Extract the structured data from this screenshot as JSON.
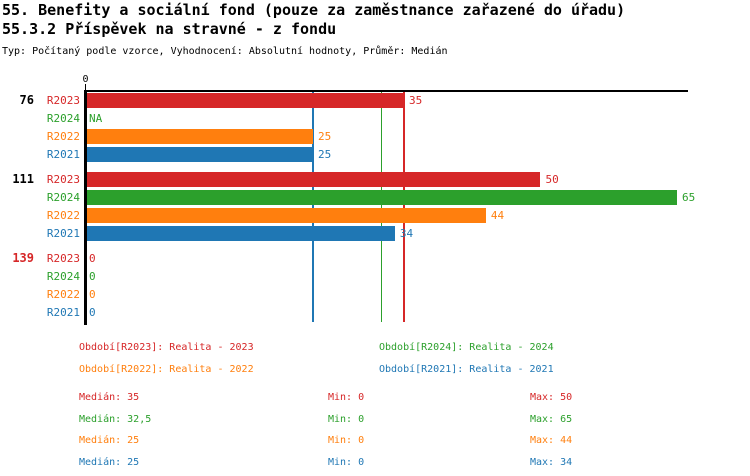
{
  "header": {
    "title": "55. Benefity a sociální fond (pouze za zaměstnance zařazené do úřadu)",
    "subtitle": "55.3.2 Příspěvek na stravné - z fondu",
    "meta": "Typ: Počítaný podle vzorce, Vyhodnocení: Absolutní hodnoty, Průměr: Medián"
  },
  "colors": {
    "R2023": "#d62728",
    "R2024": "#2ca02c",
    "R2022": "#ff7f0e",
    "R2021": "#1f77b4",
    "axis": "#000000",
    "group_label_default": "#000000",
    "group_label_highlight": "#d62728"
  },
  "chart_data": {
    "type": "bar",
    "orientation": "horizontal",
    "title": "55.3.2 Příspěvek na stravné - z fondu",
    "xlabel": "",
    "ylabel": "",
    "xlim": [
      0,
      66
    ],
    "grid": false,
    "x_ticks": [
      {
        "value": 0,
        "label": "0"
      }
    ],
    "series": [
      "R2023",
      "R2024",
      "R2022",
      "R2021"
    ],
    "groups": [
      {
        "label": "76",
        "highlight": false,
        "values": [
          {
            "series": "R2023",
            "value": 35,
            "label": "35"
          },
          {
            "series": "R2024",
            "value": null,
            "label": "NA"
          },
          {
            "series": "R2022",
            "value": 25,
            "label": "25"
          },
          {
            "series": "R2021",
            "value": 25,
            "label": "25"
          }
        ]
      },
      {
        "label": "111",
        "highlight": false,
        "values": [
          {
            "series": "R2023",
            "value": 50,
            "label": "50"
          },
          {
            "series": "R2024",
            "value": 65,
            "label": "65"
          },
          {
            "series": "R2022",
            "value": 44,
            "label": "44"
          },
          {
            "series": "R2021",
            "value": 34,
            "label": "34"
          }
        ]
      },
      {
        "label": "139",
        "highlight": true,
        "values": [
          {
            "series": "R2023",
            "value": 0,
            "label": "0"
          },
          {
            "series": "R2024",
            "value": 0,
            "label": "0"
          },
          {
            "series": "R2022",
            "value": 0,
            "label": "0"
          },
          {
            "series": "R2021",
            "value": 0,
            "label": "0"
          }
        ]
      }
    ],
    "median_lines": [
      {
        "series": "R2022",
        "value": 25
      },
      {
        "series": "R2021",
        "value": 25
      },
      {
        "series": "R2024",
        "value": 32.5
      },
      {
        "series": "R2023",
        "value": 35
      }
    ]
  },
  "legend": {
    "items": [
      {
        "series": "R2023",
        "text": "Období[R2023]: Realita - 2023"
      },
      {
        "series": "R2024",
        "text": "Období[R2024]: Realita - 2024"
      },
      {
        "series": "R2022",
        "text": "Období[R2022]: Realita - 2022"
      },
      {
        "series": "R2021",
        "text": "Období[R2021]: Realita - 2021"
      }
    ]
  },
  "stats": {
    "rows": [
      {
        "series": "R2023",
        "median": "Medián: 35",
        "min": "Min: 0",
        "max": "Max: 50"
      },
      {
        "series": "R2024",
        "median": "Medián: 32,5",
        "min": "Min: 0",
        "max": "Max: 65"
      },
      {
        "series": "R2022",
        "median": "Medián: 25",
        "min": "Min: 0",
        "max": "Max: 44"
      },
      {
        "series": "R2021",
        "median": "Medián: 25",
        "min": "Min: 0",
        "max": "Max: 34"
      }
    ]
  }
}
